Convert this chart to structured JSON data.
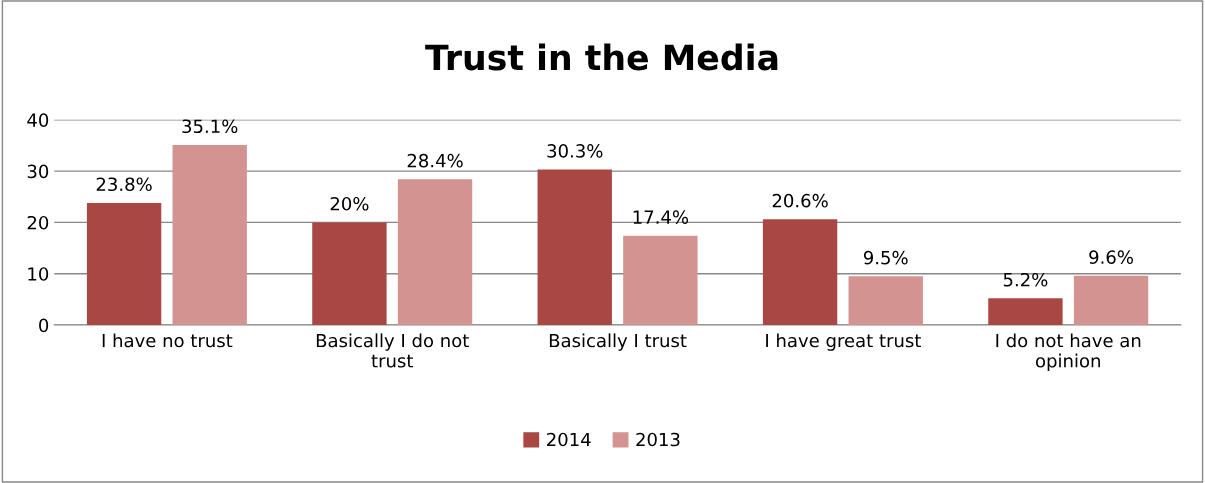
{
  "chart_data": {
    "type": "bar",
    "title": "Trust in the Media",
    "categories": [
      "I have no trust",
      "Basically I do not trust",
      "Basically I trust",
      "I have great trust",
      "I do not have an opinion"
    ],
    "series": [
      {
        "name": "2014",
        "color": "#a94744",
        "values": [
          23.8,
          20,
          30.3,
          20.6,
          5.2
        ],
        "value_labels": [
          "23.8%",
          "20%",
          "30.3%",
          "20.6%",
          "5.2%"
        ]
      },
      {
        "name": "2013",
        "color": "#d39391",
        "values": [
          35.1,
          28.4,
          17.4,
          9.5,
          9.6
        ],
        "value_labels": [
          "35.1%",
          "28.4%",
          "17.4%",
          "9.5%",
          "9.6%"
        ]
      }
    ],
    "ylim": [
      0,
      40
    ],
    "yticks": [
      0,
      10,
      20,
      30,
      40
    ],
    "grid": "y",
    "legend": "bottom"
  }
}
